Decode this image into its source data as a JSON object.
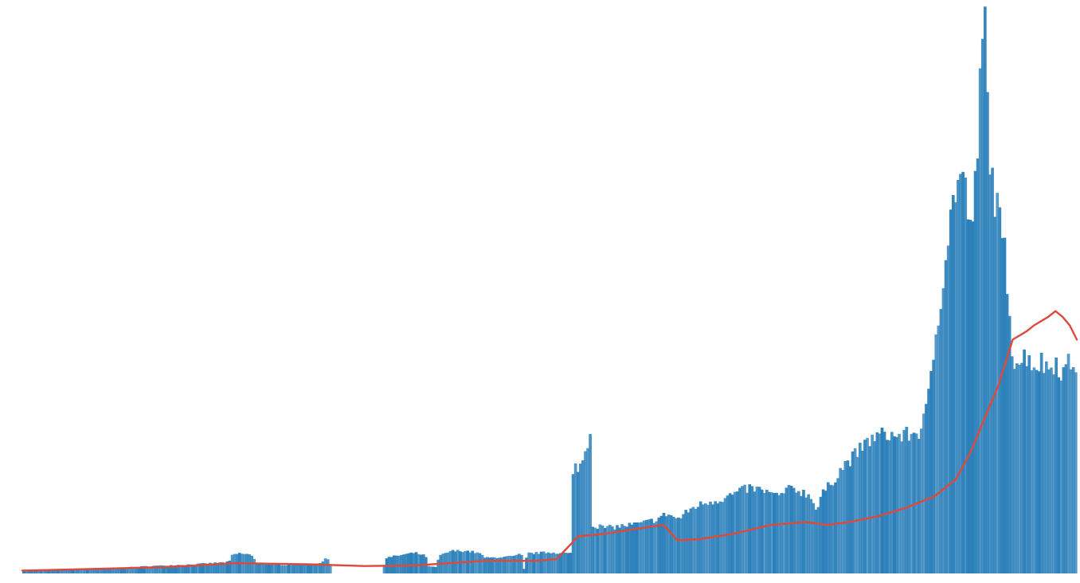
{
  "chart_data": {
    "type": "bar",
    "title": "",
    "xlabel": "",
    "ylabel": "",
    "grid": false,
    "legend": "none",
    "ylim": [
      0,
      100
    ],
    "bar_color": "#2a7fba",
    "line_color": "#e0493a",
    "bar_profile": [
      [
        0,
        0.5
      ],
      [
        4,
        0.6
      ],
      [
        8,
        0.8
      ],
      [
        14,
        1.0
      ],
      [
        18,
        1.3
      ],
      [
        24,
        1.6
      ],
      [
        29,
        2.0
      ],
      [
        29.5,
        3.3
      ],
      [
        30.5,
        3.5
      ],
      [
        32,
        3.3
      ],
      [
        33,
        1.7
      ],
      [
        37,
        1.5
      ],
      [
        40.5,
        1.7
      ],
      [
        42,
        1.9
      ],
      [
        42.5,
        2.5
      ],
      [
        43,
        2.5
      ],
      [
        43.5,
        0
      ],
      [
        50.5,
        0
      ],
      [
        51,
        2.7
      ],
      [
        53,
        3.2
      ],
      [
        55,
        3.6
      ],
      [
        56.5,
        3.2
      ],
      [
        57,
        1.2
      ],
      [
        58,
        1.1
      ],
      [
        58.5,
        3.0
      ],
      [
        60,
        3.9
      ],
      [
        62,
        4.0
      ],
      [
        64,
        3.6
      ],
      [
        65,
        2.7
      ],
      [
        69,
        3.0
      ],
      [
        70,
        3.4
      ],
      [
        70.5,
        0
      ],
      [
        70.8,
        3.5
      ],
      [
        74,
        3.7
      ],
      [
        77,
        3.5
      ],
      [
        77.3,
        18.5
      ],
      [
        78.5,
        19.0
      ],
      [
        79,
        21.5
      ],
      [
        79.7,
        25.0
      ],
      [
        80,
        8.5
      ],
      [
        82,
        8.0
      ],
      [
        84,
        8.3
      ],
      [
        87,
        8.8
      ],
      [
        89,
        9.5
      ],
      [
        90.5,
        10.5
      ],
      [
        92,
        9.5
      ],
      [
        94,
        11.5
      ],
      [
        96,
        12.5
      ],
      [
        98,
        13.0
      ],
      [
        100,
        14.0
      ],
      [
        102,
        15.0
      ],
      [
        104,
        14.5
      ],
      [
        106,
        13.5
      ],
      [
        108,
        15.0
      ],
      [
        110,
        14.0
      ],
      [
        111,
        13.0
      ],
      [
        111.5,
        10.5
      ],
      [
        112,
        13.5
      ],
      [
        113,
        15.0
      ],
      [
        115,
        18.5
      ],
      [
        117,
        21.0
      ],
      [
        119,
        23.5
      ],
      [
        121,
        24.5
      ],
      [
        123,
        24.0
      ],
      [
        125,
        24.5
      ],
      [
        126,
        25.0
      ],
      [
        127,
        29.0
      ],
      [
        128,
        40.0
      ],
      [
        129,
        50.0
      ],
      [
        130,
        60.0
      ],
      [
        131,
        68.0
      ],
      [
        132,
        70.0
      ],
      [
        133,
        60.0
      ],
      [
        134,
        70.0
      ],
      [
        134.5,
        88.0
      ],
      [
        135,
        100.0
      ],
      [
        135.5,
        80.0
      ],
      [
        136,
        70.0
      ],
      [
        137,
        62.0
      ],
      [
        138,
        55.0
      ],
      [
        139,
        38.0
      ],
      [
        140,
        37.0
      ],
      [
        141,
        38.5
      ],
      [
        142,
        36.5
      ],
      [
        143,
        37.0
      ],
      [
        144,
        36.0
      ],
      [
        145,
        37.5
      ],
      [
        146,
        35.0
      ],
      [
        147,
        37.0
      ],
      [
        148,
        36.5
      ]
    ],
    "trend_line": [
      [
        0,
        0.5
      ],
      [
        10,
        0.8
      ],
      [
        20,
        1.1
      ],
      [
        30,
        1.8
      ],
      [
        40,
        1.6
      ],
      [
        48,
        1.3
      ],
      [
        55,
        1.4
      ],
      [
        60,
        1.8
      ],
      [
        65,
        2.2
      ],
      [
        72,
        2.2
      ],
      [
        75,
        2.5
      ],
      [
        78,
        6.5
      ],
      [
        82,
        7.0
      ],
      [
        86,
        7.8
      ],
      [
        90,
        8.5
      ],
      [
        92,
        5.8
      ],
      [
        95,
        6.0
      ],
      [
        100,
        7.0
      ],
      [
        105,
        8.5
      ],
      [
        110,
        9.0
      ],
      [
        113,
        8.5
      ],
      [
        116,
        9.0
      ],
      [
        120,
        10.0
      ],
      [
        124,
        11.5
      ],
      [
        128,
        13.5
      ],
      [
        131,
        16.5
      ],
      [
        133,
        21.0
      ],
      [
        135,
        27.0
      ],
      [
        137,
        33.0
      ],
      [
        139,
        41.0
      ],
      [
        141,
        42.5
      ],
      [
        142,
        43.5
      ],
      [
        144,
        45.0
      ],
      [
        145,
        46.0
      ],
      [
        146,
        45.0
      ],
      [
        147,
        43.5
      ],
      [
        148,
        41.0
      ]
    ]
  }
}
